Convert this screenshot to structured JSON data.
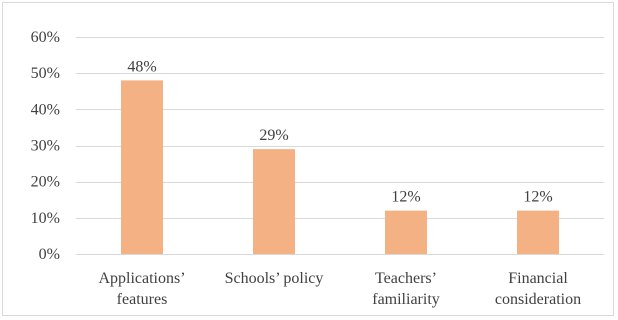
{
  "chart_data": {
    "type": "bar",
    "categories": [
      [
        "Applications’",
        "features"
      ],
      [
        "Schools’ policy"
      ],
      [
        "Teachers’",
        "familiarity"
      ],
      [
        "Financial",
        "consideration"
      ]
    ],
    "values": [
      48,
      29,
      12,
      12
    ],
    "data_labels": [
      "48%",
      "29%",
      "12%",
      "12%"
    ],
    "yticks": [
      0,
      10,
      20,
      30,
      40,
      50,
      60
    ],
    "ytick_labels": [
      "0%",
      "10%",
      "20%",
      "30%",
      "40%",
      "50%",
      "60%"
    ],
    "ylim": [
      0,
      60
    ],
    "grid": true,
    "legend": "none",
    "colors": {
      "bar": "#f4b183",
      "grid": "#d9d9d9",
      "text": "#404040"
    }
  }
}
